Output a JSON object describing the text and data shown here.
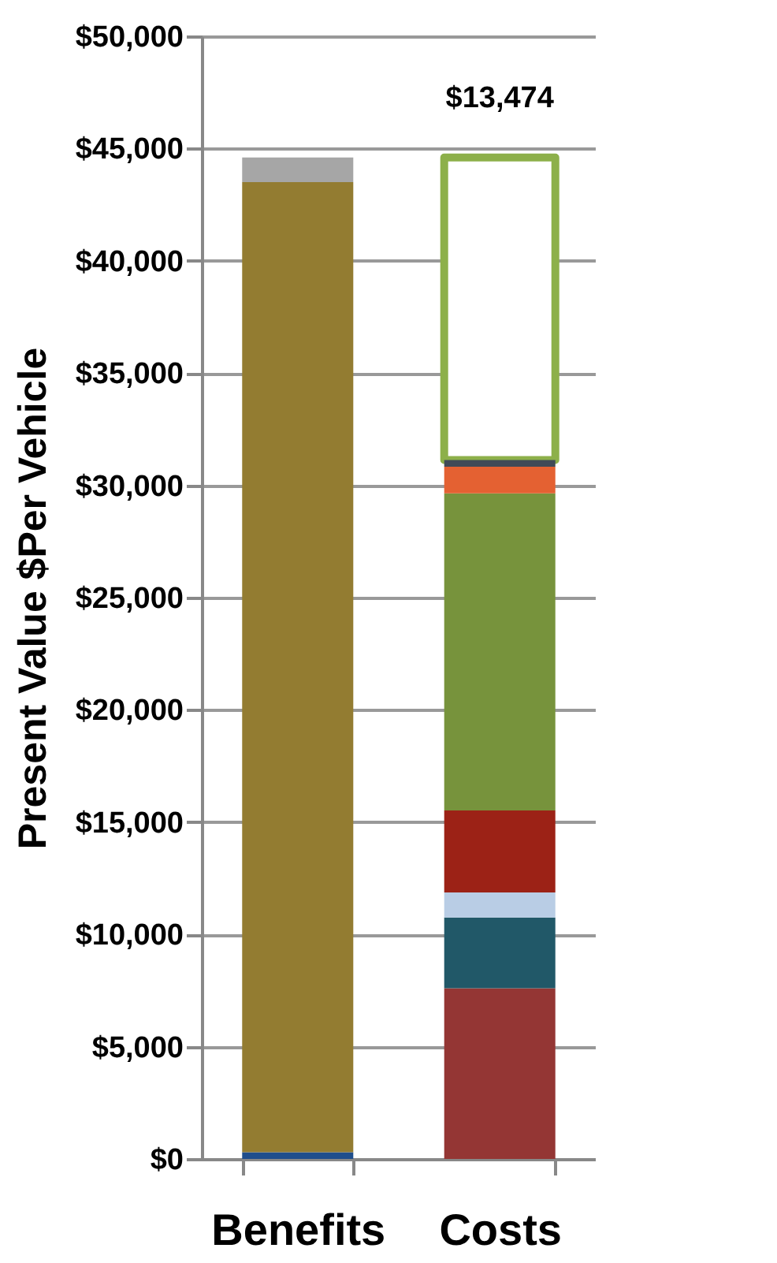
{
  "chart_data": {
    "type": "bar",
    "stacked": true,
    "ylabel": "Present Value $Per Vehicle",
    "categories": [
      "Benefits",
      "Costs"
    ],
    "series": [
      {
        "color": "#1f4e8c",
        "values": [
          300,
          null
        ]
      },
      {
        "color": "#937c31",
        "values": [
          43200,
          null
        ]
      },
      {
        "color": "#a6a6a6",
        "values": [
          1100,
          null
        ]
      },
      {
        "color": "#943634",
        "values": [
          null,
          7600
        ]
      },
      {
        "color": "#215868",
        "values": [
          null,
          3150
        ]
      },
      {
        "color": "#b9cde5",
        "values": [
          null,
          1120
        ]
      },
      {
        "color": "#9c2216",
        "values": [
          null,
          3650
        ]
      },
      {
        "color": "#77933c",
        "values": [
          null,
          14120
        ]
      },
      {
        "color": "#e46132",
        "values": [
          null,
          1190
        ]
      },
      {
        "color": "#404a57",
        "values": [
          null,
          300
        ]
      },
      {
        "color": "#8db04a",
        "line_style": "solid",
        "values": [
          null,
          13474
        ],
        "value_labels": [
          null,
          "$13,474"
        ]
      }
    ],
    "ylim": [
      0,
      50000
    ],
    "yticks": [
      {
        "value": 0,
        "label": "$0"
      },
      {
        "value": 5000,
        "label": "$5,000"
      },
      {
        "value": 10000,
        "label": "$10,000"
      },
      {
        "value": 15000,
        "label": "$15,000"
      },
      {
        "value": 20000,
        "label": "$20,000"
      },
      {
        "value": 25000,
        "label": "$25,000"
      },
      {
        "value": 30000,
        "label": "$30,000"
      },
      {
        "value": 35000,
        "label": "$35,000"
      },
      {
        "value": 40000,
        "label": "$40,000"
      },
      {
        "value": 45000,
        "label": "$45,000"
      },
      {
        "value": 50000,
        "label": "$50,000"
      }
    ],
    "grid": "y"
  }
}
